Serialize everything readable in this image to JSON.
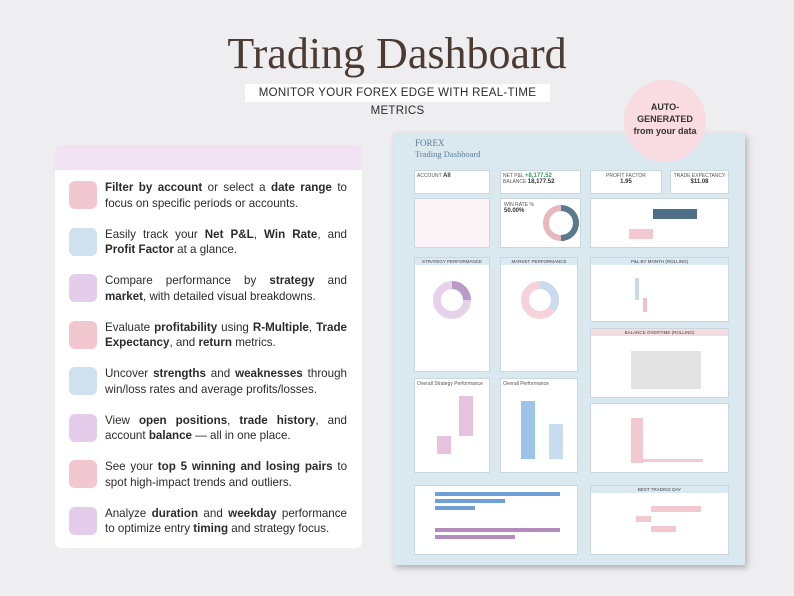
{
  "header": {
    "title": "Trading Dashboard",
    "subtitle": "MONITOR YOUR FOREX EDGE WITH REAL-TIME METRICS"
  },
  "badge": {
    "line1": "AUTO-",
    "line2": "GENERATED",
    "line3": "from your data"
  },
  "features": [
    {
      "segments": [
        {
          "text": "Filter by account",
          "bold": true
        },
        {
          "text": " or select a ",
          "bold": false
        },
        {
          "text": "date range",
          "bold": true
        },
        {
          "text": " to focus on specific periods or accounts.",
          "bold": false
        }
      ]
    },
    {
      "segments": [
        {
          "text": "Easily track your ",
          "bold": false
        },
        {
          "text": "Net P&L",
          "bold": true
        },
        {
          "text": ", ",
          "bold": false
        },
        {
          "text": "Win Rate",
          "bold": true
        },
        {
          "text": ", and ",
          "bold": false
        },
        {
          "text": "Profit Factor",
          "bold": true
        },
        {
          "text": " at a glance.",
          "bold": false
        }
      ]
    },
    {
      "segments": [
        {
          "text": "Compare performance by ",
          "bold": false
        },
        {
          "text": "strategy",
          "bold": true
        },
        {
          "text": " and ",
          "bold": false
        },
        {
          "text": "market",
          "bold": true
        },
        {
          "text": ", with detailed visual breakdowns.",
          "bold": false
        }
      ]
    },
    {
      "segments": [
        {
          "text": "Evaluate ",
          "bold": false
        },
        {
          "text": "profitability",
          "bold": true
        },
        {
          "text": " using ",
          "bold": false
        },
        {
          "text": "R-Multiple",
          "bold": true
        },
        {
          "text": ", ",
          "bold": false
        },
        {
          "text": "Trade Expectancy",
          "bold": true
        },
        {
          "text": ", and ",
          "bold": false
        },
        {
          "text": "return",
          "bold": true
        },
        {
          "text": " metrics.",
          "bold": false
        }
      ]
    },
    {
      "segments": [
        {
          "text": "Uncover ",
          "bold": false
        },
        {
          "text": "strengths",
          "bold": true
        },
        {
          "text": " and ",
          "bold": false
        },
        {
          "text": "weaknesses",
          "bold": true
        },
        {
          "text": " through win/loss rates and average profits/losses.",
          "bold": false
        }
      ]
    },
    {
      "segments": [
        {
          "text": "View ",
          "bold": false
        },
        {
          "text": "open positions",
          "bold": true
        },
        {
          "text": ", ",
          "bold": false
        },
        {
          "text": "trade history",
          "bold": true
        },
        {
          "text": ", and account ",
          "bold": false
        },
        {
          "text": "balance",
          "bold": true
        },
        {
          "text": " — all in one place.",
          "bold": false
        }
      ]
    },
    {
      "segments": [
        {
          "text": "See your ",
          "bold": false
        },
        {
          "text": "top 5 winning and losing pairs",
          "bold": true
        },
        {
          "text": " to spot high-impact trends and outliers.",
          "bold": false
        }
      ]
    },
    {
      "segments": [
        {
          "text": "Analyze ",
          "bold": false
        },
        {
          "text": "duration",
          "bold": true
        },
        {
          "text": " and ",
          "bold": false
        },
        {
          "text": "weekday",
          "bold": true
        },
        {
          "text": " performance to optimize entry ",
          "bold": false
        },
        {
          "text": "timing",
          "bold": true
        },
        {
          "text": " and strategy focus.",
          "bold": false
        }
      ]
    }
  ],
  "dashboard": {
    "brand": "FOREX",
    "name": "Trading Dashboard",
    "account_label": "ACCOUNT",
    "account_value": "All",
    "net_pl_label": "NET P&L",
    "net_pl": "+8,177.52",
    "balance_label": "BALANCE",
    "balance": "18,177.52",
    "profit_factor_label": "PROFIT FACTOR",
    "profit_factor": "1.95",
    "expectancy_label": "TRADE EXPECTANCY",
    "expectancy": "$11.08",
    "win_rate_label": "WIN RATE %",
    "win_rate": "50.00%",
    "strategy_title": "STRATEGY PERFORMANCE",
    "market_title": "MARKET PERFORMANCE",
    "pl_month_title": "P&L BY MONTH (ROLLING)",
    "balance_title": "BALANCE OVERTIME (ROLLING)",
    "overall_strategy": "Overall Strategy Performance",
    "overall": "Overall Performance",
    "best_day_title": "BEST TRADING DAY"
  }
}
